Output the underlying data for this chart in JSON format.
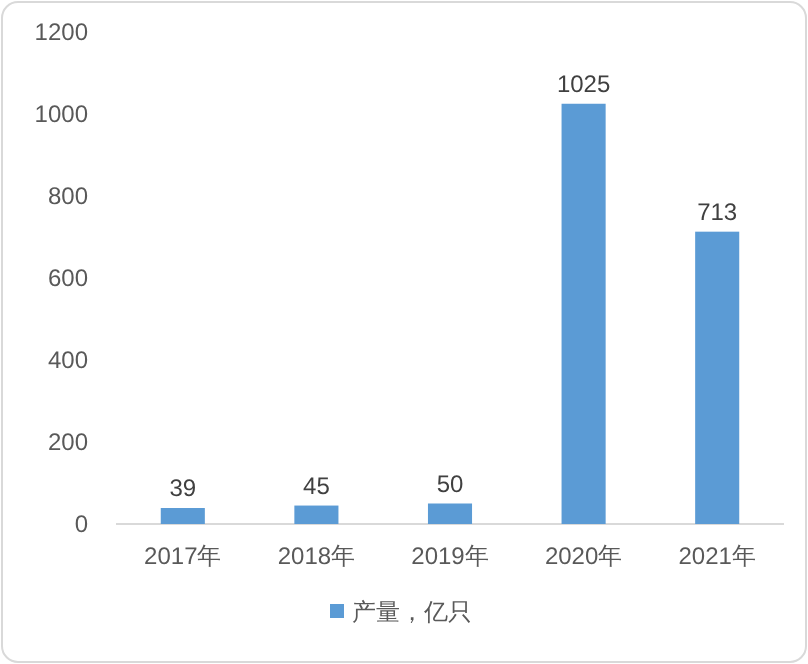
{
  "chart_data": {
    "type": "bar",
    "categories": [
      "2017年",
      "2018年",
      "2019年",
      "2020年",
      "2021年"
    ],
    "series": [
      {
        "name": "产量，亿只",
        "color": "#5b9bd5",
        "values": [
          39,
          45,
          50,
          1025,
          713
        ]
      }
    ],
    "ylim": [
      0,
      1200
    ],
    "yticks": [
      0,
      200,
      400,
      600,
      800,
      1000,
      1200
    ],
    "data_labels": true,
    "legend": "bottom"
  }
}
